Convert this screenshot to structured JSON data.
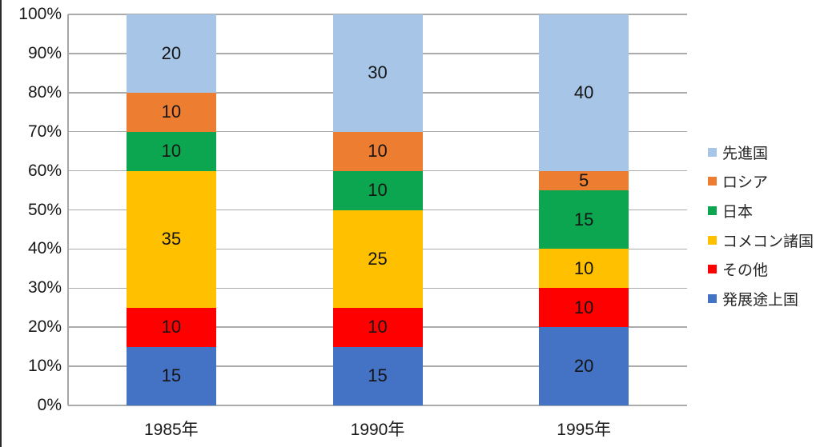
{
  "chart_data": {
    "type": "bar",
    "stacked": true,
    "percent_stacked": true,
    "title": "",
    "xlabel": "",
    "ylabel": "",
    "grid": true,
    "legend_position": "right",
    "categories": [
      "1985年",
      "1990年",
      "1995年"
    ],
    "category_keys": [
      "1985",
      "1990",
      "1995"
    ],
    "series": [
      {
        "key": "developing-countries",
        "name": "発展途上国",
        "color": "#4472C4",
        "values": [
          15,
          15,
          20
        ]
      },
      {
        "key": "others",
        "name": "その他",
        "color": "#FF0000",
        "values": [
          10,
          10,
          10
        ]
      },
      {
        "key": "comecon-countries",
        "name": "コメコン諸国",
        "color": "#FFC000",
        "values": [
          35,
          25,
          10
        ]
      },
      {
        "key": "japan",
        "name": "日本",
        "color": "#0BA64F",
        "values": [
          10,
          10,
          15
        ]
      },
      {
        "key": "russia",
        "name": "ロシア",
        "color": "#ED7D31",
        "values": [
          10,
          10,
          5
        ]
      },
      {
        "key": "developed-countries",
        "name": "先進国",
        "color": "#A6C5E7",
        "values": [
          20,
          30,
          40
        ]
      }
    ],
    "legend_order_top_to_bottom": [
      "先進国",
      "ロシア",
      "日本",
      "コメコン諸国",
      "その他",
      "発展途上国"
    ],
    "y_axis": {
      "min": 0,
      "max": 100,
      "step": 10,
      "tick_labels": [
        "0%",
        "10%",
        "20%",
        "30%",
        "40%",
        "50%",
        "60%",
        "70%",
        "80%",
        "90%",
        "100%"
      ]
    },
    "ylim": [
      0,
      100
    ]
  },
  "colors": {
    "background": "#FFFFFF",
    "gridline": "#ABABAB",
    "axis_text": "#1A1A1A",
    "bar_label_text": "#141414",
    "left_edge_artifact": "#2A2A2A"
  }
}
